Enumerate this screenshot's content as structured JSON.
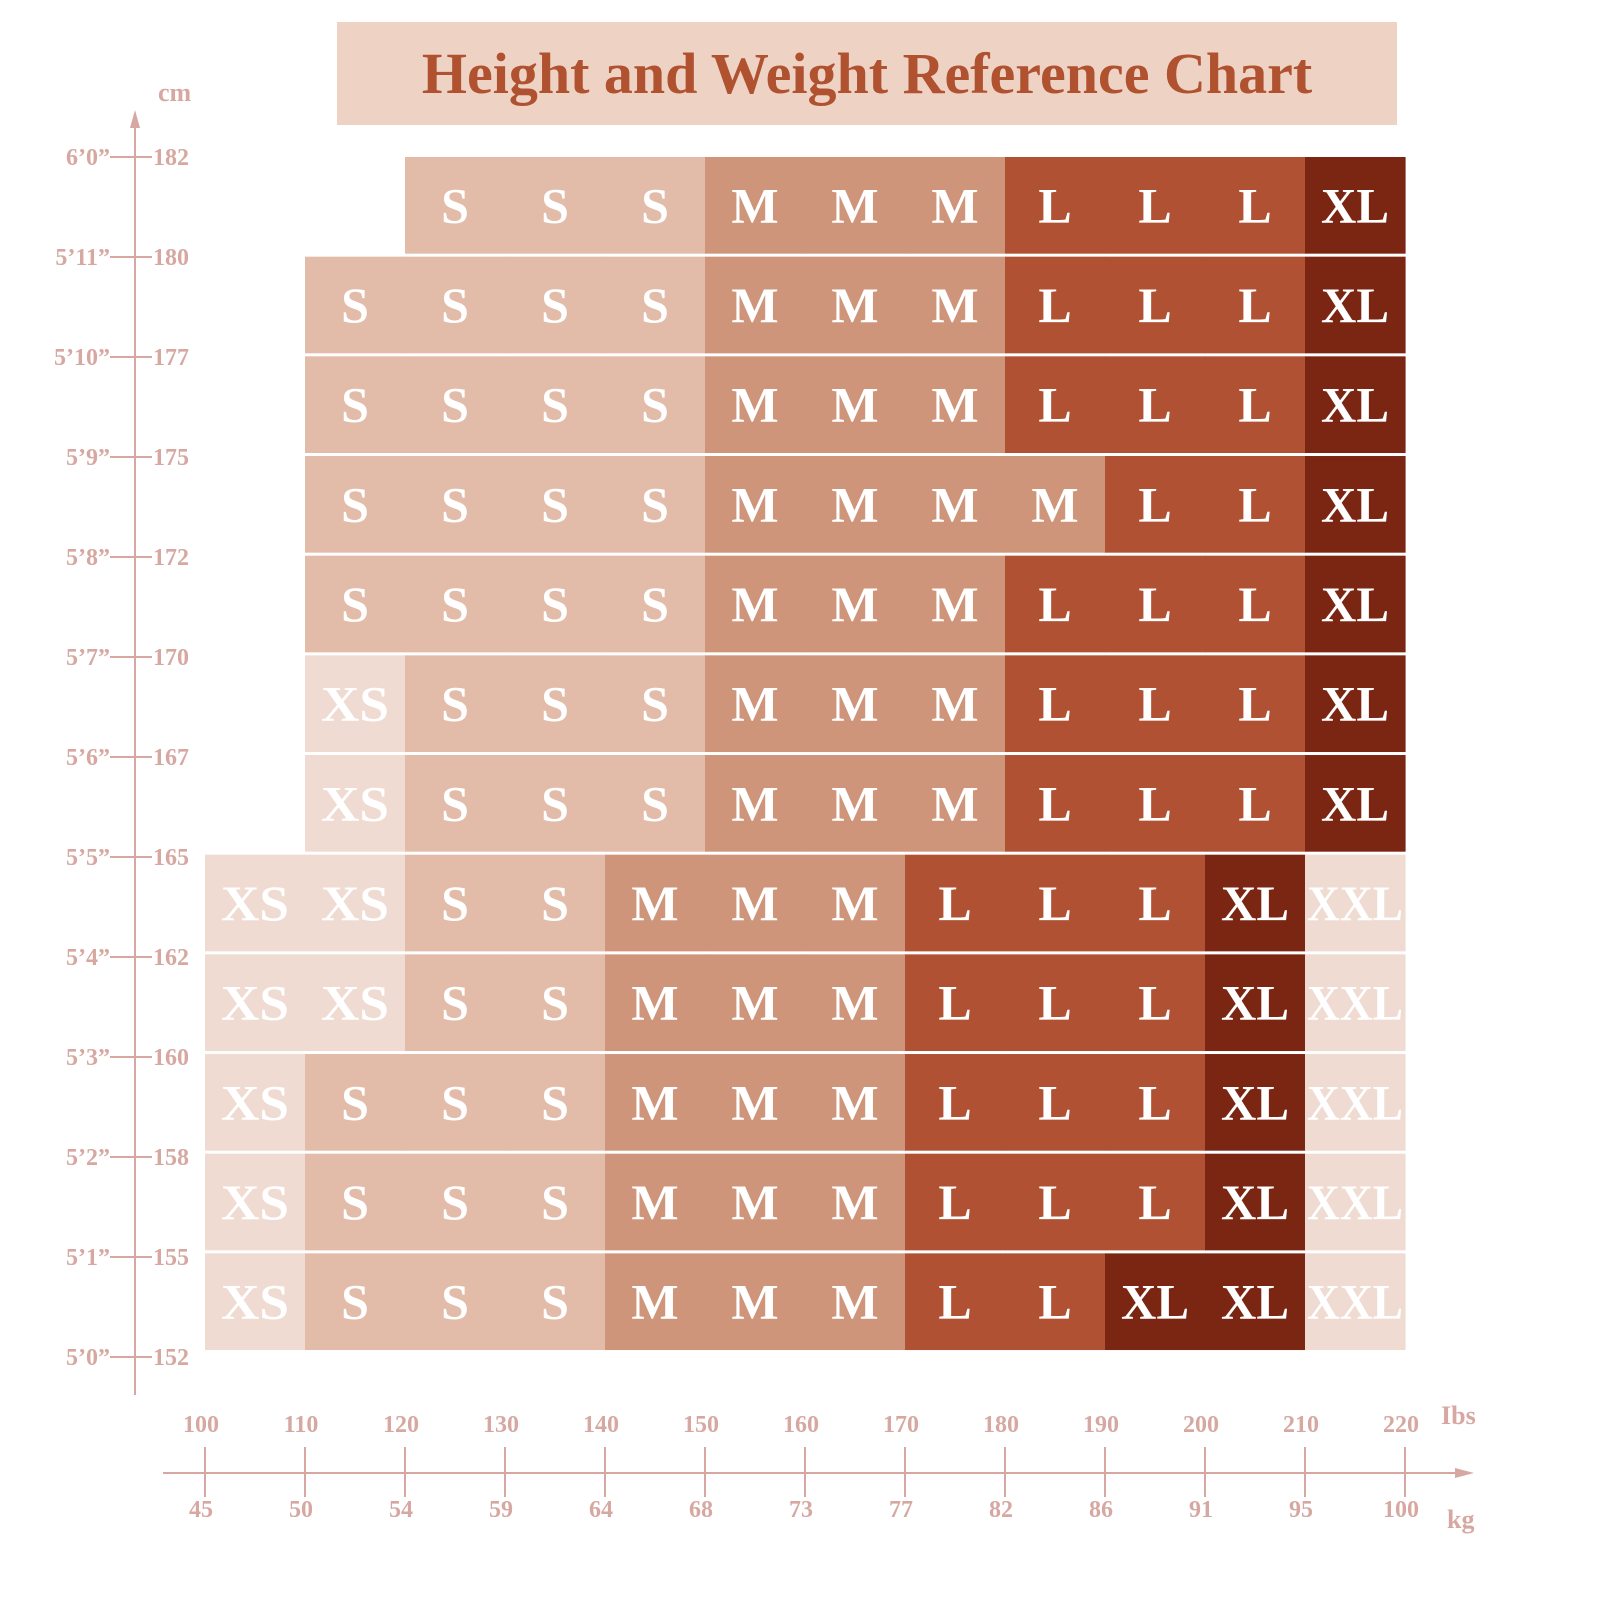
{
  "colors": {
    "title_bg": "#eed3c5",
    "title_text": "#b0512f",
    "axis": "#d6a8a1",
    "sizes": {
      "XS": "#efdbd1",
      "S": "#e3bca9",
      "M": "#ce957a",
      "L": "#b05133",
      "XL": "#7b2613",
      "XXL": "#efdbd1"
    }
  },
  "chart_data": {
    "type": "heatmap",
    "title": "Height and Weight Reference Chart",
    "y_unit": "cm",
    "x_units": [
      "Ibs",
      "kg"
    ],
    "y_ticks": [
      {
        "ft": "6’0”",
        "cm": "182"
      },
      {
        "ft": "5’11”",
        "cm": "180"
      },
      {
        "ft": "5’10”",
        "cm": "177"
      },
      {
        "ft": "5’9”",
        "cm": "175"
      },
      {
        "ft": "5’8”",
        "cm": "172"
      },
      {
        "ft": "5’7”",
        "cm": "170"
      },
      {
        "ft": "5’6”",
        "cm": "167"
      },
      {
        "ft": "5’5”",
        "cm": "165"
      },
      {
        "ft": "5’4”",
        "cm": "162"
      },
      {
        "ft": "5’3”",
        "cm": "160"
      },
      {
        "ft": "5’2”",
        "cm": "158"
      },
      {
        "ft": "5’1”",
        "cm": "155"
      },
      {
        "ft": "5’0”",
        "cm": "152"
      }
    ],
    "x_ticks_lbs": [
      "100",
      "110",
      "120",
      "130",
      "140",
      "150",
      "160",
      "170",
      "180",
      "190",
      "200",
      "210",
      "220"
    ],
    "x_ticks_kg": [
      "45",
      "50",
      "54",
      "59",
      "64",
      "68",
      "73",
      "77",
      "82",
      "86",
      "91",
      "95",
      "100"
    ],
    "rows": [
      {
        "height_cm_range": [
          180,
          182
        ],
        "start_lbs": 120,
        "sizes": [
          "S",
          "S",
          "S",
          "M",
          "M",
          "M",
          "L",
          "L",
          "L",
          "XL"
        ]
      },
      {
        "height_cm_range": [
          177,
          180
        ],
        "start_lbs": 110,
        "sizes": [
          "S",
          "S",
          "S",
          "S",
          "M",
          "M",
          "M",
          "L",
          "L",
          "L",
          "XL"
        ]
      },
      {
        "height_cm_range": [
          175,
          177
        ],
        "start_lbs": 110,
        "sizes": [
          "S",
          "S",
          "S",
          "S",
          "M",
          "M",
          "M",
          "L",
          "L",
          "L",
          "XL"
        ]
      },
      {
        "height_cm_range": [
          172,
          175
        ],
        "start_lbs": 110,
        "sizes": [
          "S",
          "S",
          "S",
          "S",
          "M",
          "M",
          "M",
          "M",
          "L",
          "L",
          "XL"
        ]
      },
      {
        "height_cm_range": [
          170,
          172
        ],
        "start_lbs": 110,
        "sizes": [
          "S",
          "S",
          "S",
          "S",
          "M",
          "M",
          "M",
          "L",
          "L",
          "L",
          "XL"
        ]
      },
      {
        "height_cm_range": [
          167,
          170
        ],
        "start_lbs": 110,
        "sizes": [
          "XS",
          "S",
          "S",
          "S",
          "M",
          "M",
          "M",
          "L",
          "L",
          "L",
          "XL"
        ]
      },
      {
        "height_cm_range": [
          165,
          167
        ],
        "start_lbs": 110,
        "sizes": [
          "XS",
          "S",
          "S",
          "S",
          "M",
          "M",
          "M",
          "L",
          "L",
          "L",
          "XL"
        ]
      },
      {
        "height_cm_range": [
          162,
          165
        ],
        "start_lbs": 100,
        "sizes": [
          "XS",
          "XS",
          "S",
          "S",
          "M",
          "M",
          "M",
          "L",
          "L",
          "L",
          "XL",
          "XXL"
        ]
      },
      {
        "height_cm_range": [
          160,
          162
        ],
        "start_lbs": 100,
        "sizes": [
          "XS",
          "XS",
          "S",
          "S",
          "M",
          "M",
          "M",
          "L",
          "L",
          "L",
          "XL",
          "XXL"
        ]
      },
      {
        "height_cm_range": [
          158,
          160
        ],
        "start_lbs": 100,
        "sizes": [
          "XS",
          "S",
          "S",
          "S",
          "M",
          "M",
          "M",
          "L",
          "L",
          "L",
          "XL",
          "XXL"
        ]
      },
      {
        "height_cm_range": [
          155,
          158
        ],
        "start_lbs": 100,
        "sizes": [
          "XS",
          "S",
          "S",
          "S",
          "M",
          "M",
          "M",
          "L",
          "L",
          "L",
          "XL",
          "XXL"
        ]
      },
      {
        "height_cm_range": [
          152,
          155
        ],
        "start_lbs": 100,
        "sizes": [
          "XS",
          "S",
          "S",
          "S",
          "M",
          "M",
          "M",
          "L",
          "L",
          "XL",
          "XL",
          "XXL"
        ]
      }
    ]
  }
}
